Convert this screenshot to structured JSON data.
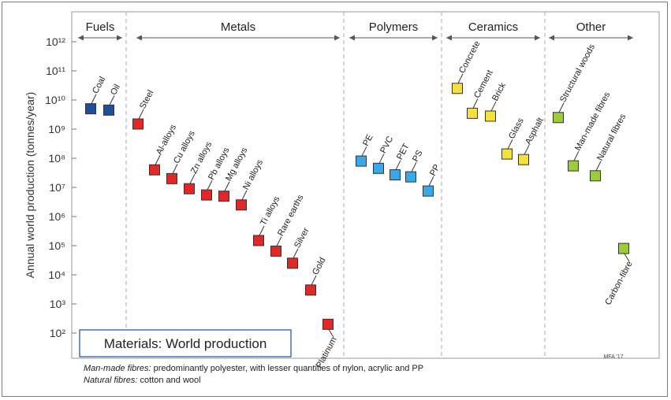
{
  "chart_data": {
    "type": "scatter",
    "title": "Materials: World production",
    "ylabel": "Annual world production (tonnes/year)",
    "yscale": "log",
    "ylim": [
      100,
      1000000000000
    ],
    "yticks": [
      "10²",
      "10³",
      "10⁴",
      "10⁵",
      "10⁶",
      "10⁷",
      "10⁸",
      "10⁹",
      "10¹⁰",
      "10¹¹",
      "10¹²"
    ],
    "grid": false,
    "credit": "MFA '17",
    "groups": [
      {
        "name": "Fuels",
        "color": "#1f4e9c"
      },
      {
        "name": "Metals",
        "color": "#e02828"
      },
      {
        "name": "Polymers",
        "color": "#3aa8e8"
      },
      {
        "name": "Ceramics",
        "color": "#f5e03c"
      },
      {
        "name": "Other",
        "color": "#9ccc3c"
      }
    ],
    "points": [
      {
        "label": "Coal",
        "group": "Fuels",
        "value": 5000000000
      },
      {
        "label": "Oil",
        "group": "Fuels",
        "value": 4500000000
      },
      {
        "label": "Steel",
        "group": "Metals",
        "value": 1500000000
      },
      {
        "label": "Al-alloys",
        "group": "Metals",
        "value": 40000000
      },
      {
        "label": "Cu alloys",
        "group": "Metals",
        "value": 20000000
      },
      {
        "label": "Zn alloys",
        "group": "Metals",
        "value": 9000000
      },
      {
        "label": "Pb alloys",
        "group": "Metals",
        "value": 5500000
      },
      {
        "label": "Mg alloys",
        "group": "Metals",
        "value": 5000000
      },
      {
        "label": "Ni alloys",
        "group": "Metals",
        "value": 2500000
      },
      {
        "label": "Ti alloys",
        "group": "Metals",
        "value": 150000
      },
      {
        "label": "Rare earths",
        "group": "Metals",
        "value": 65000
      },
      {
        "label": "Silver",
        "group": "Metals",
        "value": 25000
      },
      {
        "label": "Gold",
        "group": "Metals",
        "value": 3000
      },
      {
        "label": "Platinum",
        "group": "Metals",
        "value": 200
      },
      {
        "label": "PE",
        "group": "Polymers",
        "value": 80000000
      },
      {
        "label": "PVC",
        "group": "Polymers",
        "value": 45000000
      },
      {
        "label": "PET",
        "group": "Polymers",
        "value": 27000000
      },
      {
        "label": "PS",
        "group": "Polymers",
        "value": 23000000
      },
      {
        "label": "PP",
        "group": "Polymers",
        "value": 7500000
      },
      {
        "label": "Concrete",
        "group": "Ceramics",
        "value": 25000000000
      },
      {
        "label": "Cement",
        "group": "Ceramics",
        "value": 3500000000
      },
      {
        "label": "Brick",
        "group": "Ceramics",
        "value": 2800000000
      },
      {
        "label": "Glass",
        "group": "Ceramics",
        "value": 140000000
      },
      {
        "label": "Asphalt",
        "group": "Ceramics",
        "value": 90000000
      },
      {
        "label": "Structural woods",
        "group": "Other",
        "value": 2500000000
      },
      {
        "label": "Man-made fibres",
        "group": "Other",
        "value": 55000000
      },
      {
        "label": "Natural fibres",
        "group": "Other",
        "value": 25000000
      },
      {
        "label": "Carbon-fibre",
        "group": "Other",
        "value": 80000
      }
    ]
  },
  "notes": {
    "manmade_term": "Man-made fibres:",
    "manmade_text": " predominantly polyester, with lesser quantities of nylon, acrylic and PP",
    "natural_term": "Natural fibres:",
    "natural_text": " cotton and wool"
  }
}
